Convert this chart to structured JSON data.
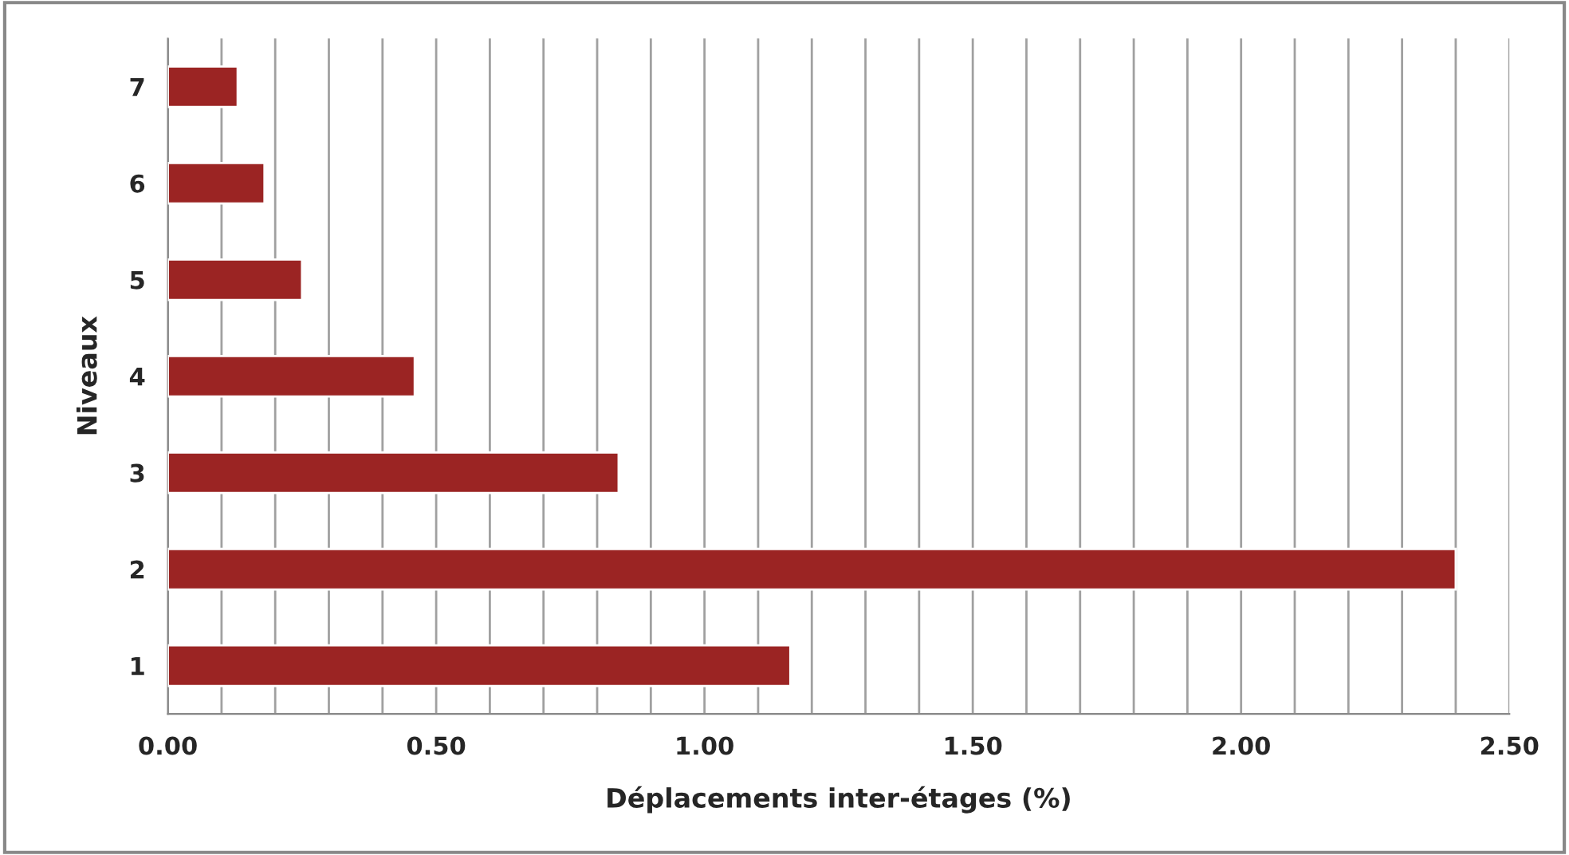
{
  "chart_data": {
    "type": "bar",
    "orientation": "horizontal",
    "categories": [
      "7",
      "6",
      "5",
      "4",
      "3",
      "2",
      "1"
    ],
    "values": [
      0.13,
      0.18,
      0.25,
      0.46,
      0.84,
      2.4,
      1.16
    ],
    "color": "#9b2423",
    "xlabel": "Déplacements inter-étages (%)",
    "ylabel": "Niveaux",
    "xlim": [
      0,
      2.5
    ],
    "xticks": [
      {
        "value": 0,
        "label": "0.00"
      },
      {
        "value": 0.1,
        "label": null
      },
      {
        "value": 0.2,
        "label": null
      },
      {
        "value": 0.3,
        "label": null
      },
      {
        "value": 0.4,
        "label": null
      },
      {
        "value": 0.5,
        "label": "0.50"
      },
      {
        "value": 0.6,
        "label": null
      },
      {
        "value": 0.7,
        "label": null
      },
      {
        "value": 0.8,
        "label": null
      },
      {
        "value": 0.9,
        "label": null
      },
      {
        "value": 1.0,
        "label": "1.00"
      },
      {
        "value": 1.1,
        "label": null
      },
      {
        "value": 1.2,
        "label": null
      },
      {
        "value": 1.3,
        "label": null
      },
      {
        "value": 1.4,
        "label": null
      },
      {
        "value": 1.5,
        "label": "1.50"
      },
      {
        "value": 1.6,
        "label": null
      },
      {
        "value": 1.7,
        "label": null
      },
      {
        "value": 1.8,
        "label": null
      },
      {
        "value": 1.9,
        "label": null
      },
      {
        "value": 2.0,
        "label": "2.00"
      },
      {
        "value": 2.1,
        "label": null
      },
      {
        "value": 2.2,
        "label": null
      },
      {
        "value": 2.3,
        "label": null
      },
      {
        "value": 2.4,
        "label": null
      },
      {
        "value": 2.5,
        "label": "2.50"
      }
    ],
    "grid": "x",
    "legend": false
  }
}
